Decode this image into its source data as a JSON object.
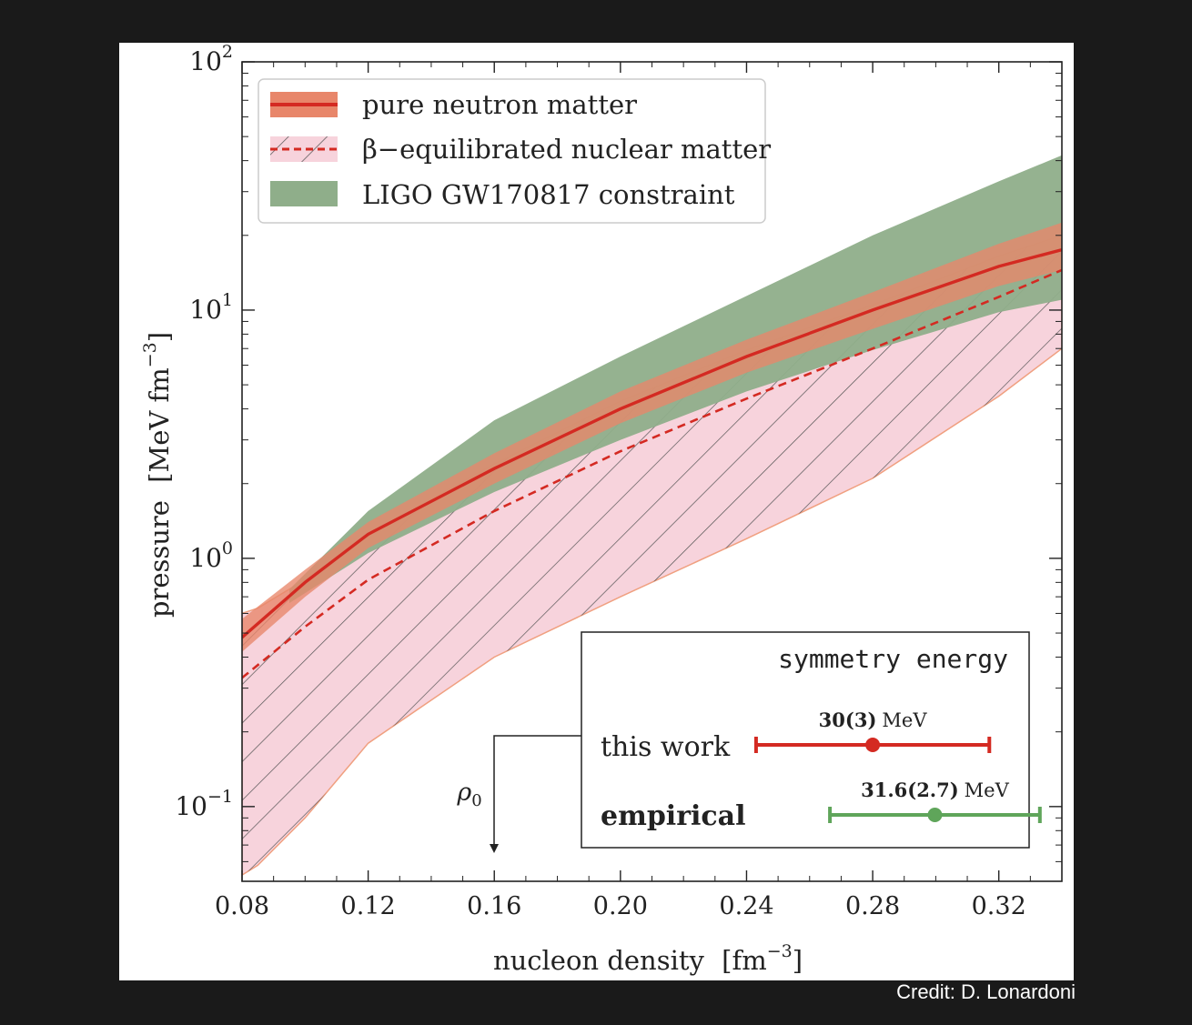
{
  "chart_data": {
    "type": "area",
    "xlabel": "nucleon density",
    "xlabel_unit": "fm",
    "xlabel_unit_exp": "−3",
    "ylabel": "pressure",
    "ylabel_unit": "MeV fm",
    "ylabel_unit_exp": "−3",
    "xlim": [
      0.08,
      0.34
    ],
    "ylim": [
      0.05,
      100
    ],
    "yscale": "log",
    "x_ticks": [
      0.08,
      0.12,
      0.16,
      0.2,
      0.24,
      0.28,
      0.32
    ],
    "x_tick_labels": [
      "0.08",
      "0.12",
      "0.16",
      "0.20",
      "0.24",
      "0.28",
      "0.32"
    ],
    "y_ticks": [
      0.1,
      1,
      10,
      100
    ],
    "y_tick_labels": [
      {
        "base": "10",
        "exp": "−1"
      },
      {
        "base": "10",
        "exp": "0"
      },
      {
        "base": "10",
        "exp": "1"
      },
      {
        "base": "10",
        "exp": "2"
      }
    ],
    "legend_position": "top-left",
    "series": [
      {
        "name": "LIGO GW170817 constraint",
        "kind": "band",
        "color": "#8fae8a",
        "x": [
          0.095,
          0.12,
          0.16,
          0.2,
          0.24,
          0.28,
          0.32,
          0.34
        ],
        "lower": [
          0.66,
          1.05,
          1.85,
          3.0,
          4.7,
          6.9,
          9.8,
          11.0
        ],
        "upper": [
          0.75,
          1.55,
          3.6,
          6.5,
          11.4,
          20.0,
          33.0,
          42.0
        ]
      },
      {
        "name": "pure neutron matter",
        "kind": "band",
        "color": "#e8866a",
        "x": [
          0.08,
          0.1,
          0.12,
          0.16,
          0.2,
          0.24,
          0.28,
          0.32,
          0.34
        ],
        "lower": [
          0.42,
          0.7,
          1.1,
          2.0,
          3.5,
          5.6,
          8.4,
          12.5,
          14.5
        ],
        "upper": [
          0.57,
          0.9,
          1.4,
          2.65,
          4.7,
          7.6,
          11.8,
          18.5,
          22.5
        ]
      },
      {
        "name": "pure neutron matter",
        "kind": "line",
        "color": "#d42a22",
        "x": [
          0.08,
          0.1,
          0.12,
          0.16,
          0.2,
          0.24,
          0.28,
          0.32,
          0.34
        ],
        "y": [
          0.48,
          0.8,
          1.25,
          2.3,
          4.0,
          6.5,
          10.0,
          15.0,
          17.5
        ]
      },
      {
        "name": "β−equilibrated nuclear matter",
        "kind": "hatched-band",
        "color": "#f7d3dc",
        "x": [
          0.08,
          0.085,
          0.1,
          0.12,
          0.16,
          0.2,
          0.24,
          0.28,
          0.32,
          0.34
        ],
        "lower": [
          0.053,
          0.058,
          0.09,
          0.18,
          0.4,
          0.7,
          1.2,
          2.1,
          4.5,
          7.0
        ],
        "upper": [
          0.6,
          0.63,
          0.82,
          1.25,
          2.4,
          4.3,
          6.9,
          10.5,
          16.5,
          20.0
        ]
      },
      {
        "name": "β−equilibrated nuclear matter",
        "kind": "dashed-line",
        "color": "#d42a22",
        "x": [
          0.08,
          0.1,
          0.12,
          0.16,
          0.2,
          0.24,
          0.28,
          0.32,
          0.34
        ],
        "y": [
          0.33,
          0.53,
          0.82,
          1.55,
          2.7,
          4.4,
          7.0,
          11.3,
          14.5
        ]
      }
    ],
    "legend": [
      {
        "label": "pure neutron matter",
        "style": "solid-band"
      },
      {
        "label": "β−equilibrated nuclear matter",
        "style": "dashed-hatched"
      },
      {
        "label": "LIGO GW170817 constraint",
        "style": "green-band"
      }
    ],
    "marker_rho0": {
      "label": "ρ",
      "subscript": "0",
      "x": 0.16
    },
    "inset": {
      "title": "symmetry energy",
      "xlim": [
        23,
        34
      ],
      "rows": [
        {
          "label": "this work",
          "value_label": "30(3)",
          "unit": "MeV",
          "center": 30,
          "low": 27,
          "high": 33,
          "color": "#d42a22"
        },
        {
          "label": "empirical",
          "value_label": "31.6(2.7)",
          "unit": "MeV",
          "center": 31.6,
          "low": 28.9,
          "high": 34.3,
          "color": "#5fa55a"
        }
      ]
    }
  },
  "credit": "Credit: D. Lonardoni"
}
